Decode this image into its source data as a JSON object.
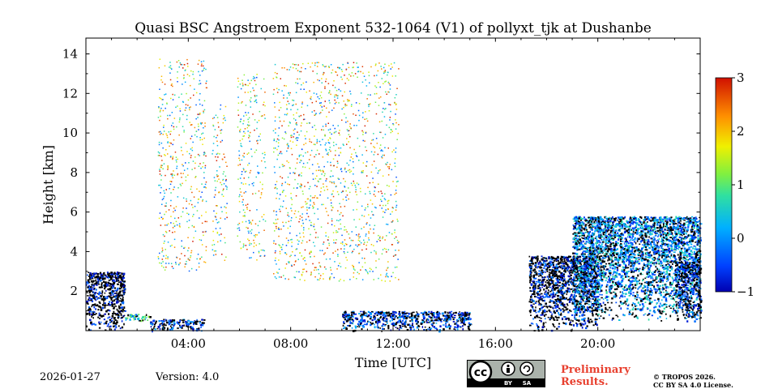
{
  "chart_data": {
    "type": "heatmap",
    "title": "Quasi BSC Angstroem Exponent 532-1064 (V1) of pollyxt_tjk at Dushanbe",
    "xlabel": "Time [UTC]",
    "ylabel": "Height [km]",
    "x_unit": "hours UTC",
    "xlim": [
      0,
      24
    ],
    "ylim": [
      0,
      14.8
    ],
    "x_ticks": [
      4,
      8,
      12,
      16,
      20
    ],
    "x_tick_labels": [
      "04:00",
      "08:00",
      "12:00",
      "16:00",
      "20:00"
    ],
    "y_ticks": [
      2,
      4,
      6,
      8,
      10,
      12,
      14
    ],
    "y_tick_labels": [
      "2",
      "4",
      "6",
      "8",
      "10",
      "12",
      "14"
    ],
    "colorbar": {
      "range": [
        -1,
        3
      ],
      "ticks": [
        -1,
        0,
        1,
        2,
        3
      ],
      "tick_labels": [
        "−1",
        "0",
        "1",
        "2",
        "3"
      ],
      "colormap": "jet"
    },
    "regions": [
      {
        "name": "surface layer early",
        "x": [
          0,
          1.5
        ],
        "y": [
          0,
          3.0
        ],
        "typical_value": -1.0
      },
      {
        "name": "surface layer green band",
        "x": [
          1.5,
          2.5
        ],
        "y": [
          0.5,
          0.85
        ],
        "typical_value": 0.5
      },
      {
        "name": "surface layer morning",
        "x": [
          2.5,
          4.6
        ],
        "y": [
          0,
          0.6
        ],
        "typical_value": -0.6
      },
      {
        "name": "scattered noise column A",
        "x": [
          2.8,
          4.7
        ],
        "y": [
          3.0,
          13.8
        ],
        "typical_value": 1.5
      },
      {
        "name": "scattered noise column B",
        "x": [
          4.9,
          5.5
        ],
        "y": [
          3.5,
          11.5
        ],
        "typical_value": 1.5
      },
      {
        "name": "scattered noise column C",
        "x": [
          5.9,
          7.0
        ],
        "y": [
          3.5,
          13.0
        ],
        "typical_value": 1.5
      },
      {
        "name": "scattered noise column D",
        "x": [
          7.3,
          12.2
        ],
        "y": [
          2.5,
          13.6
        ],
        "typical_value": 1.5
      },
      {
        "name": "surface layer midday",
        "x": [
          10.0,
          15.0
        ],
        "y": [
          0,
          1.0
        ],
        "typical_value": -0.5
      },
      {
        "name": "afternoon aerosol",
        "x": [
          17.3,
          20.0
        ],
        "y": [
          0,
          3.8
        ],
        "typical_value": -0.8
      },
      {
        "name": "evening aerosol layer",
        "x": [
          19.0,
          24.0
        ],
        "y": [
          0.5,
          5.8
        ],
        "typical_value": 0.0
      },
      {
        "name": "late surface layer",
        "x": [
          23.0,
          24.0
        ],
        "y": [
          0.5,
          3.5
        ],
        "typical_value": -0.7
      }
    ]
  },
  "footer": {
    "date": "2026-01-27",
    "version": "Version: 4.0",
    "preliminary_line1": "Preliminary",
    "preliminary_line2": "Results.",
    "copyright_line1": "© TROPOS 2026.",
    "copyright_line2": "CC BY SA 4.0 License.",
    "license_badge": {
      "cc": "cc",
      "by": "BY",
      "sa": "SA"
    }
  },
  "colors": {
    "surface": "#000000",
    "badge_bg": "#aab2ab",
    "badge_dark": "#000000",
    "prelim": "#e8402f"
  }
}
